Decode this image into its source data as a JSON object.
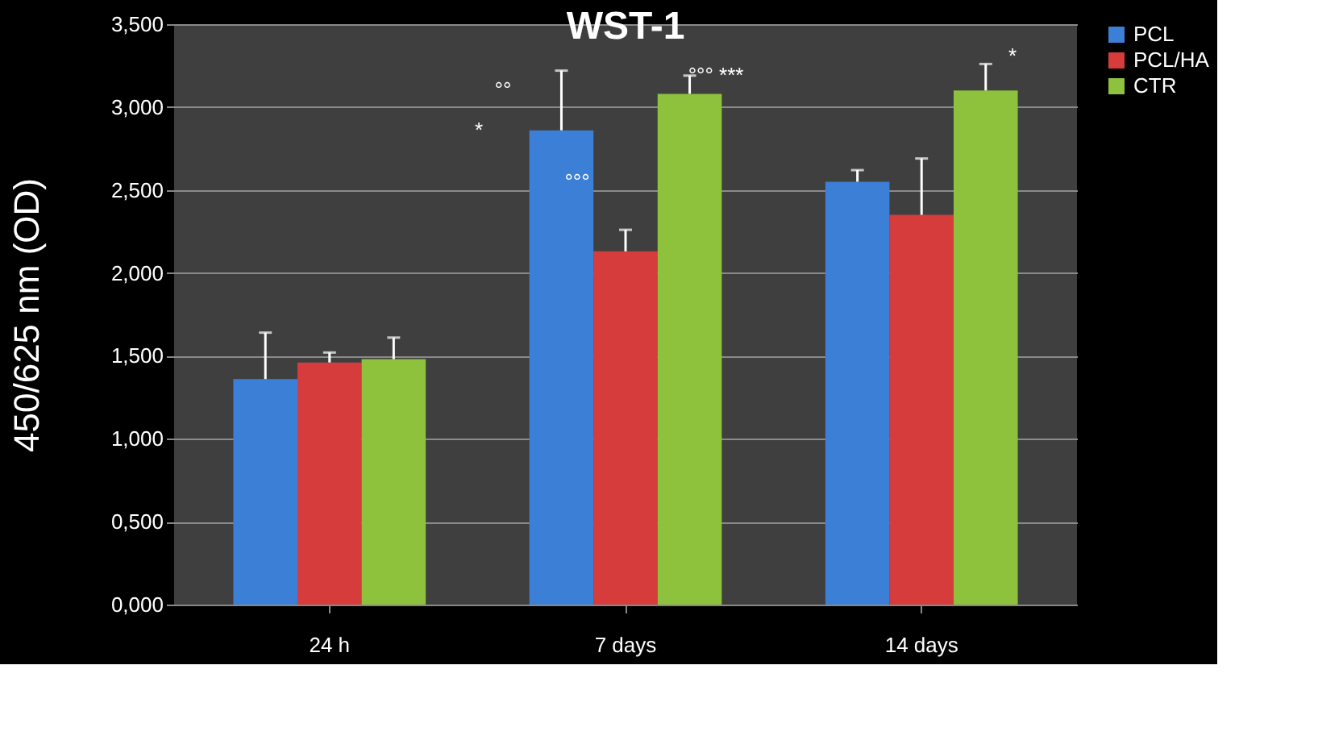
{
  "chart_data": {
    "type": "bar",
    "title": "WST-1",
    "ylabel": "450/625 nm (OD)",
    "categories": [
      "24 h",
      "7 days",
      "14 days"
    ],
    "series": [
      {
        "name": "PCL",
        "color": "#3c7fd6",
        "values": [
          1.36,
          2.86,
          2.55
        ],
        "errors": [
          0.28,
          0.36,
          0.07
        ]
      },
      {
        "name": "PCL/HA",
        "color": "#d63c3c",
        "values": [
          1.46,
          2.13,
          2.35
        ],
        "errors": [
          0.06,
          0.13,
          0.34
        ]
      },
      {
        "name": "CTR",
        "color": "#8fc23c",
        "values": [
          1.48,
          3.08,
          3.1
        ],
        "errors": [
          0.13,
          0.11,
          0.16
        ]
      }
    ],
    "ylim": [
      0,
      3.5
    ],
    "yticks": [
      {
        "value": 0,
        "label": "0,000"
      },
      {
        "value": 0.5,
        "label": "0,500"
      },
      {
        "value": 1,
        "label": "1,000"
      },
      {
        "value": 1.5,
        "label": "1,500"
      },
      {
        "value": 2,
        "label": "2,000"
      },
      {
        "value": 2.5,
        "label": "2,500"
      },
      {
        "value": 3,
        "label": "3,000"
      },
      {
        "value": 3.5,
        "label": "3,500"
      }
    ],
    "grid": "y",
    "legend": "right",
    "annotations": [
      "°°",
      "*",
      "°°°",
      "°°° ***",
      "*"
    ]
  }
}
